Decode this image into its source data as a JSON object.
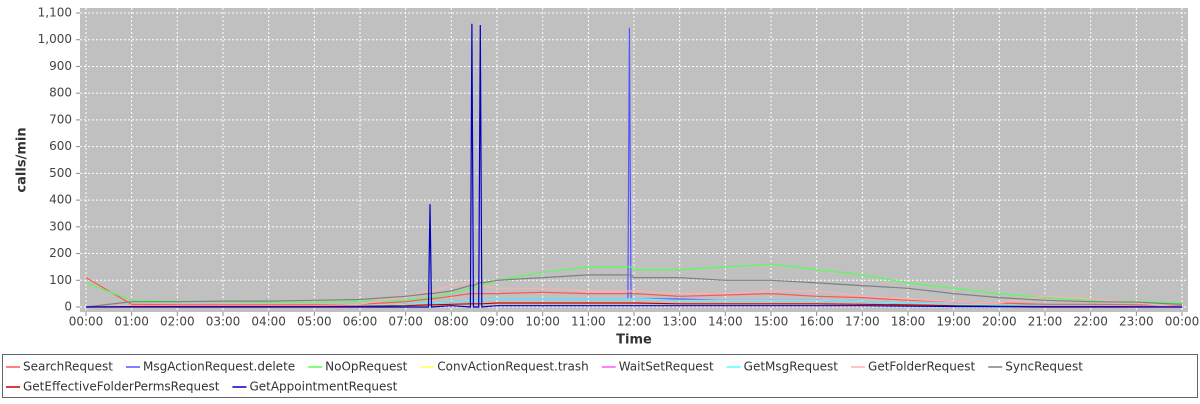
{
  "chart_data": {
    "type": "line",
    "y_label": "calls/min",
    "x_label": "Time",
    "xlim": [
      0,
      1440
    ],
    "ylim": [
      0,
      1100
    ],
    "xticks": [
      {
        "value": 0,
        "label": "00:00"
      },
      {
        "value": 60,
        "label": "01:00"
      },
      {
        "value": 120,
        "label": "02:00"
      },
      {
        "value": 180,
        "label": "03:00"
      },
      {
        "value": 240,
        "label": "04:00"
      },
      {
        "value": 300,
        "label": "05:00"
      },
      {
        "value": 360,
        "label": "06:00"
      },
      {
        "value": 420,
        "label": "07:00"
      },
      {
        "value": 480,
        "label": "08:00"
      },
      {
        "value": 540,
        "label": "09:00"
      },
      {
        "value": 600,
        "label": "10:00"
      },
      {
        "value": 660,
        "label": "11:00"
      },
      {
        "value": 720,
        "label": "12:00"
      },
      {
        "value": 780,
        "label": "13:00"
      },
      {
        "value": 840,
        "label": "14:00"
      },
      {
        "value": 900,
        "label": "15:00"
      },
      {
        "value": 960,
        "label": "16:00"
      },
      {
        "value": 1020,
        "label": "17:00"
      },
      {
        "value": 1080,
        "label": "18:00"
      },
      {
        "value": 1140,
        "label": "19:00"
      },
      {
        "value": 1200,
        "label": "20:00"
      },
      {
        "value": 1260,
        "label": "21:00"
      },
      {
        "value": 1320,
        "label": "22:00"
      },
      {
        "value": 1380,
        "label": "23:00"
      },
      {
        "value": 1440,
        "label": "00:00"
      }
    ],
    "yticks": [
      0,
      100,
      200,
      300,
      400,
      500,
      600,
      700,
      800,
      900,
      {
        "value": 1000,
        "label": "1,000"
      },
      {
        "value": 1100,
        "label": "1,100"
      }
    ],
    "grid": true,
    "x": [
      0,
      60,
      120,
      180,
      240,
      300,
      360,
      420,
      450,
      452,
      454,
      480,
      505,
      507,
      509,
      516,
      518,
      520,
      540,
      600,
      660,
      712,
      714,
      716,
      720,
      780,
      840,
      900,
      960,
      1020,
      1080,
      1140,
      1200,
      1260,
      1320,
      1380,
      1440
    ],
    "series": [
      {
        "name": "SearchRequest",
        "color": "#ff5555",
        "values": [
          110,
          10,
          8,
          8,
          8,
          8,
          10,
          20,
          30,
          30,
          30,
          40,
          50,
          50,
          50,
          50,
          50,
          50,
          50,
          55,
          50,
          50,
          50,
          50,
          50,
          40,
          45,
          50,
          40,
          35,
          25,
          20,
          15,
          10,
          10,
          8,
          5
        ]
      },
      {
        "name": "MsgActionRequest.delete",
        "color": "#5555ff",
        "values": [
          0,
          2,
          2,
          2,
          2,
          2,
          3,
          10,
          15,
          15,
          15,
          20,
          25,
          25,
          25,
          25,
          25,
          25,
          30,
          30,
          30,
          30,
          1045,
          30,
          30,
          30,
          25,
          25,
          25,
          20,
          15,
          10,
          8,
          5,
          5,
          3,
          2
        ]
      },
      {
        "name": "NoOpRequest",
        "color": "#55ff55",
        "values": [
          90,
          25,
          22,
          20,
          18,
          18,
          20,
          25,
          35,
          35,
          35,
          50,
          70,
          70,
          70,
          80,
          80,
          80,
          100,
          130,
          150,
          150,
          150,
          150,
          140,
          140,
          150,
          160,
          140,
          120,
          90,
          70,
          50,
          35,
          25,
          20,
          15
        ]
      },
      {
        "name": "ConvActionRequest.trash",
        "color": "#ffff55",
        "values": [
          0,
          1,
          1,
          1,
          1,
          1,
          2,
          5,
          8,
          8,
          8,
          10,
          12,
          12,
          12,
          12,
          12,
          12,
          15,
          15,
          15,
          15,
          15,
          15,
          15,
          12,
          12,
          12,
          12,
          10,
          8,
          5,
          3,
          2,
          2,
          1,
          0
        ]
      },
      {
        "name": "WaitSetRequest",
        "color": "#ff55ff",
        "values": [
          0,
          2,
          2,
          2,
          2,
          2,
          3,
          10,
          15,
          15,
          15,
          20,
          25,
          25,
          25,
          25,
          25,
          25,
          30,
          30,
          30,
          30,
          30,
          30,
          30,
          25,
          25,
          25,
          25,
          20,
          15,
          10,
          8,
          5,
          5,
          3,
          2
        ]
      },
      {
        "name": "GetMsgRequest",
        "color": "#55ffff",
        "values": [
          0,
          3,
          3,
          3,
          3,
          3,
          5,
          10,
          15,
          15,
          15,
          20,
          25,
          25,
          25,
          25,
          25,
          25,
          30,
          30,
          30,
          30,
          30,
          30,
          30,
          25,
          25,
          25,
          25,
          20,
          15,
          10,
          8,
          5,
          5,
          3,
          2
        ]
      },
      {
        "name": "GetFolderRequest",
        "color": "#ffafaf",
        "values": [
          0,
          5,
          5,
          5,
          5,
          5,
          10,
          40,
          60,
          60,
          60,
          80,
          90,
          90,
          90,
          80,
          80,
          80,
          70,
          70,
          60,
          60,
          60,
          60,
          60,
          50,
          50,
          60,
          60,
          40,
          30,
          20,
          15,
          40,
          30,
          15,
          0
        ]
      },
      {
        "name": "SyncRequest",
        "color": "#808080",
        "values": [
          0,
          20,
          20,
          22,
          22,
          25,
          28,
          40,
          50,
          50,
          50,
          60,
          80,
          80,
          80,
          90,
          90,
          90,
          100,
          110,
          120,
          120,
          120,
          120,
          110,
          110,
          100,
          100,
          90,
          80,
          70,
          50,
          35,
          25,
          20,
          18,
          10
        ]
      },
      {
        "name": "GetEffectiveFolderPermsRequest",
        "color": "#c00000",
        "values": [
          0,
          2,
          2,
          2,
          2,
          2,
          3,
          5,
          8,
          8,
          8,
          10,
          12,
          12,
          12,
          12,
          12,
          12,
          15,
          15,
          15,
          15,
          15,
          15,
          15,
          12,
          12,
          12,
          12,
          10,
          8,
          5,
          3,
          2,
          2,
          1,
          0
        ]
      },
      {
        "name": "GetAppointmentRequest",
        "color": "#0000c0",
        "values": [
          0,
          0,
          0,
          0,
          0,
          0,
          0,
          0,
          0,
          385,
          0,
          5,
          0,
          1060,
          0,
          0,
          1055,
          0,
          5,
          5,
          5,
          5,
          5,
          5,
          5,
          5,
          5,
          5,
          5,
          5,
          3,
          2,
          1,
          0,
          0,
          0,
          0
        ]
      }
    ]
  }
}
